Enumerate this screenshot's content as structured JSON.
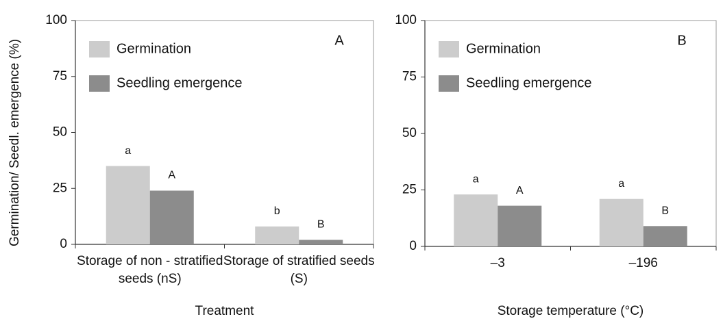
{
  "chart_data": [
    {
      "type": "bar",
      "panel": "A",
      "ylabel": "Germination/ Seedl. emergence  (%)",
      "xlabel": "Treatment",
      "categories": [
        "Storage of non - stratified seeds (nS)",
        "Storage of stratified seeds (S)"
      ],
      "series": [
        {
          "name": "Germination",
          "color": "#cccccc",
          "values": [
            35,
            8
          ],
          "letters": [
            "a",
            "b"
          ]
        },
        {
          "name": "Seedling emergence",
          "color": "#8c8c8c",
          "values": [
            24,
            2
          ],
          "letters": [
            "A",
            "B"
          ]
        }
      ],
      "ylim": [
        0,
        100
      ],
      "yticks": [
        0,
        25,
        50,
        75,
        100
      ],
      "grid": false
    },
    {
      "type": "bar",
      "panel": "B",
      "xlabel": "Storage temperature (°C)",
      "categories": [
        "–3",
        "–196"
      ],
      "series": [
        {
          "name": "Germination",
          "color": "#cccccc",
          "values": [
            23,
            21
          ],
          "letters": [
            "a",
            "a"
          ]
        },
        {
          "name": "Seedling emergence",
          "color": "#8c8c8c",
          "values": [
            18,
            9
          ],
          "letters": [
            "A",
            "B"
          ]
        }
      ],
      "ylim": [
        0,
        100
      ],
      "yticks": [
        0,
        25,
        50,
        75,
        100
      ],
      "grid": false
    }
  ]
}
